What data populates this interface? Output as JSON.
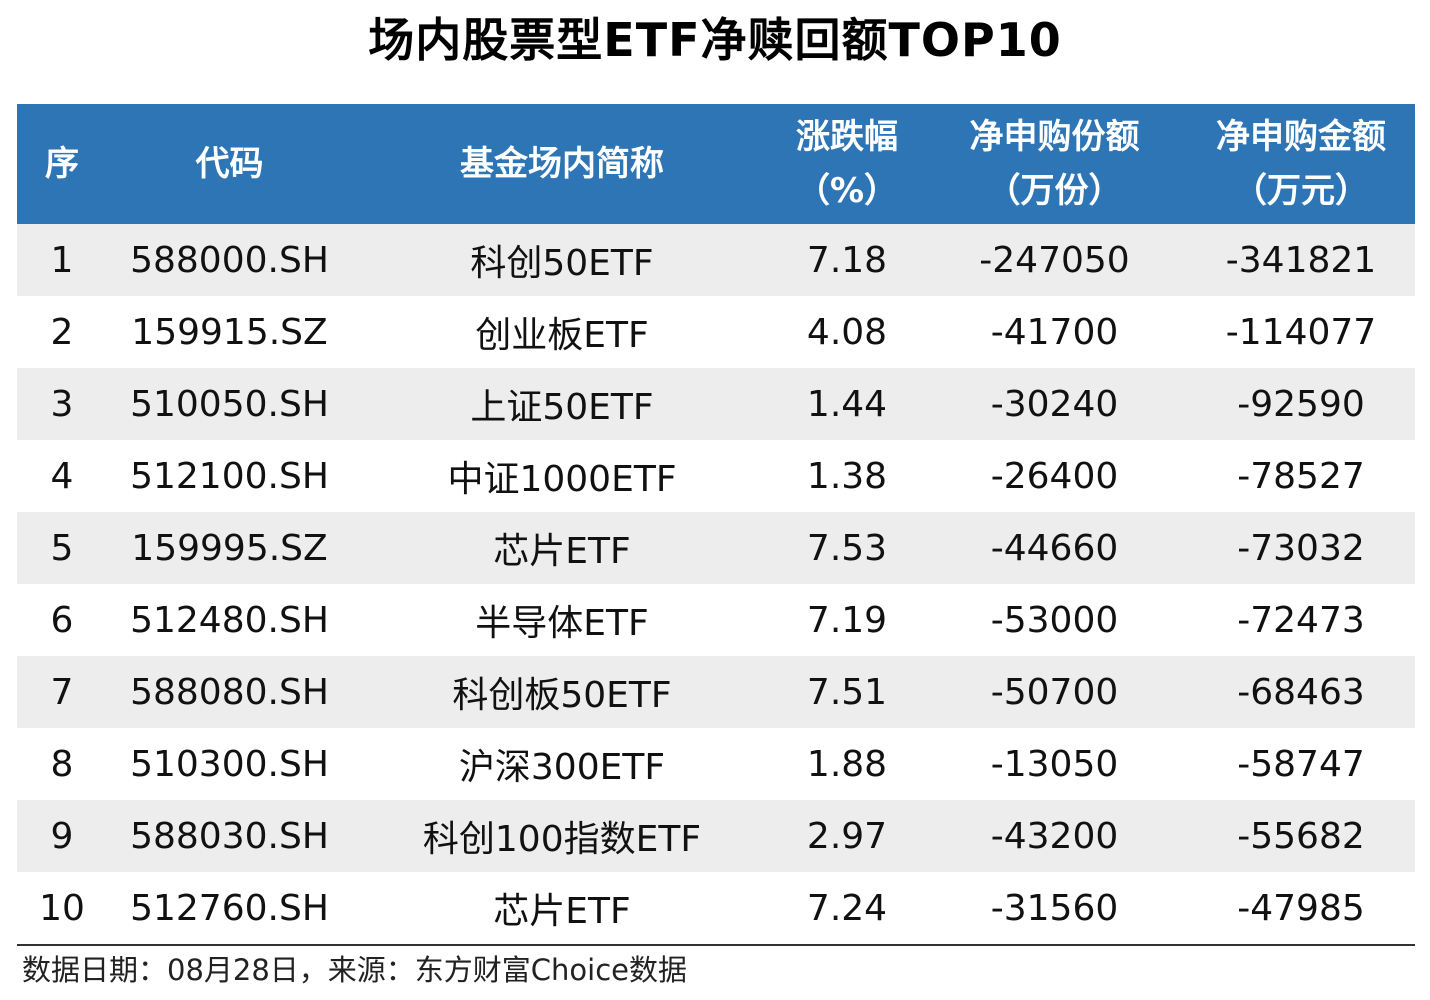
{
  "title": "场内股票型ETF净赎回额TOP10",
  "colors": {
    "header_bg": "#2e75b6",
    "header_text": "#ffffff",
    "stripe": "#ededed"
  },
  "table": {
    "headers": [
      {
        "l1": "序",
        "l2": ""
      },
      {
        "l1": "代码",
        "l2": ""
      },
      {
        "l1": "基金场内简称",
        "l2": ""
      },
      {
        "l1": "涨跌幅",
        "l2": "（%）"
      },
      {
        "l1": "净申购份额",
        "l2": "（万份）"
      },
      {
        "l1": "净申购金额",
        "l2": "（万元）"
      }
    ],
    "rows": [
      [
        "1",
        "588000.SH",
        "科创50ETF",
        "7.18",
        "-247050",
        "-341821"
      ],
      [
        "2",
        "159915.SZ",
        "创业板ETF",
        "4.08",
        "-41700",
        "-114077"
      ],
      [
        "3",
        "510050.SH",
        "上证50ETF",
        "1.44",
        "-30240",
        "-92590"
      ],
      [
        "4",
        "512100.SH",
        "中证1000ETF",
        "1.38",
        "-26400",
        "-78527"
      ],
      [
        "5",
        "159995.SZ",
        "芯片ETF",
        "7.53",
        "-44660",
        "-73032"
      ],
      [
        "6",
        "512480.SH",
        "半导体ETF",
        "7.19",
        "-53000",
        "-72473"
      ],
      [
        "7",
        "588080.SH",
        "科创板50ETF",
        "7.51",
        "-50700",
        "-68463"
      ],
      [
        "8",
        "510300.SH",
        "沪深300ETF",
        "1.88",
        "-13050",
        "-58747"
      ],
      [
        "9",
        "588030.SH",
        "科创100指数ETF",
        "2.97",
        "-43200",
        "-55682"
      ],
      [
        "10",
        "512760.SH",
        "芯片ETF",
        "7.24",
        "-31560",
        "-47985"
      ]
    ]
  },
  "footer": "数据日期：08月28日，来源：东方财富Choice数据"
}
